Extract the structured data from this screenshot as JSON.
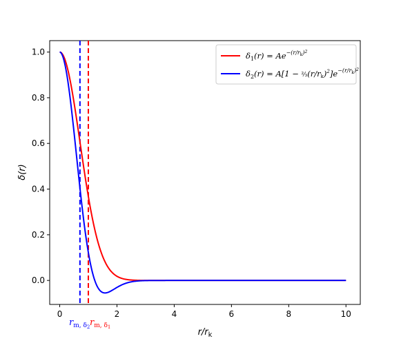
{
  "chart_data": {
    "type": "line",
    "xlabel": "r/r_k",
    "ylabel": "δ(r)",
    "xlim": [
      -0.35,
      10.5
    ],
    "ylim": [
      -0.105,
      1.05
    ],
    "x_ticks": [
      0,
      2,
      4,
      6,
      8,
      10
    ],
    "y_ticks": [
      0.0,
      0.2,
      0.4,
      0.6,
      0.8,
      1.0
    ],
    "legend_position": "upper right",
    "grid": false,
    "series": [
      {
        "name": "δ1(r) = A e^{-(r/r_k)^2}",
        "color": "#ff0000",
        "formula": "gaussian",
        "x": [
          0,
          0.25,
          0.5,
          0.75,
          1.0,
          1.25,
          1.5,
          1.75,
          2.0,
          2.5,
          3.0,
          4.0,
          6.0,
          8.0,
          10.0
        ],
        "y": [
          1.0,
          0.939,
          0.779,
          0.57,
          0.368,
          0.21,
          0.105,
          0.047,
          0.018,
          0.002,
          0.0,
          0.0,
          0.0,
          0.0,
          0.0
        ]
      },
      {
        "name": "δ2(r) = A[1 − (2/3)(r/r_k)^2] e^{-(r/r_k)^2}",
        "color": "#0000ff",
        "formula": "mexican",
        "x": [
          0,
          0.25,
          0.5,
          0.75,
          1.0,
          1.25,
          1.5,
          1.75,
          2.0,
          2.5,
          3.0,
          4.0,
          6.0,
          8.0,
          10.0
        ],
        "y": [
          1.0,
          0.9,
          0.649,
          0.356,
          0.123,
          -0.009,
          -0.053,
          -0.048,
          -0.03,
          -0.006,
          -0.001,
          0.0,
          0.0,
          0.0,
          0.0
        ]
      }
    ],
    "vlines": [
      {
        "label": "r_m,δ2",
        "x": 0.707,
        "color": "#0000ff",
        "style": "dashed"
      },
      {
        "label": "r_m,δ1",
        "x": 1.0,
        "color": "#ff0000",
        "style": "dashed"
      }
    ]
  }
}
